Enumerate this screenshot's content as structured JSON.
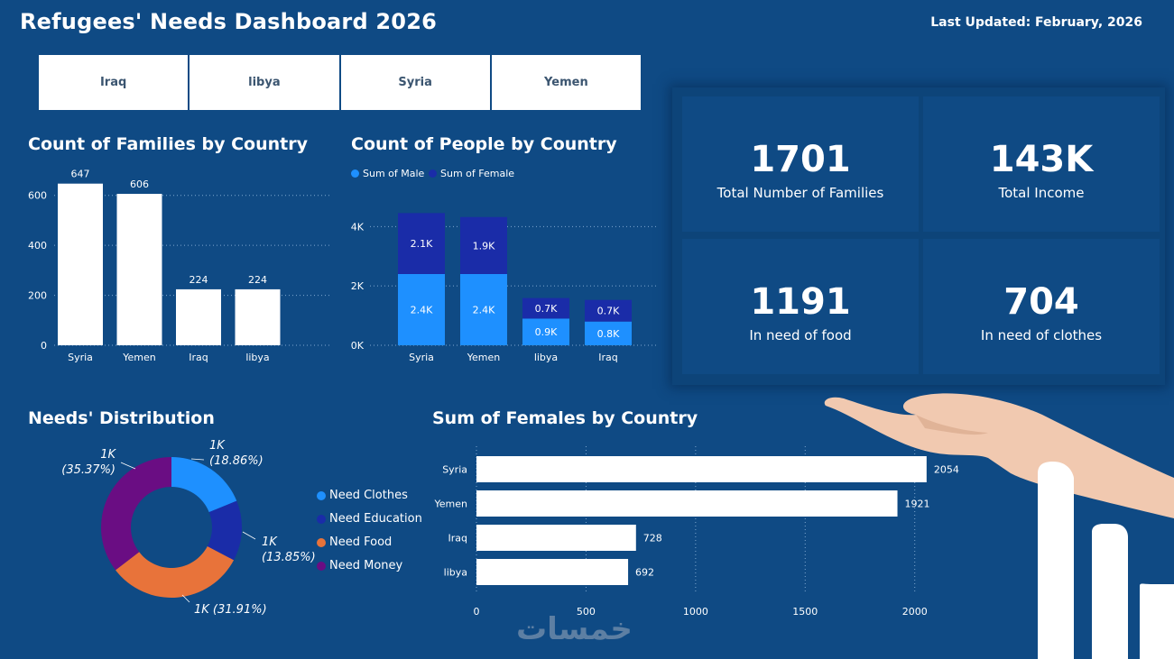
{
  "header": {
    "title": "Refugees' Needs Dashboard 2026",
    "last_updated": "Last Updated: February, 2026"
  },
  "slicer": {
    "items": [
      "Iraq",
      "libya",
      "Syria",
      "Yemen"
    ]
  },
  "colors": {
    "background": "#0f4a84",
    "male": "#1e90ff",
    "female": "#1a2ca8",
    "bar": "#ffffff",
    "clothes": "#1e90ff",
    "education": "#1a2ca8",
    "food": "#e8733a",
    "money": "#6a0d83"
  },
  "kpis": [
    {
      "value": "1701",
      "label": "Total Number of Families"
    },
    {
      "value": "143K",
      "label": "Total Income"
    },
    {
      "value": "1191",
      "label": "In need of food"
    },
    {
      "value": "704",
      "label": "In need of clothes"
    }
  ],
  "watermark": "خمسات",
  "chart_data": [
    {
      "id": "families",
      "type": "bar",
      "title": "Count of Families by Country",
      "categories": [
        "Syria",
        "Yemen",
        "Iraq",
        "libya"
      ],
      "values": [
        647,
        606,
        224,
        224
      ],
      "yticks": [
        0,
        200,
        400,
        600
      ],
      "ytick_labels": [
        "0",
        "200",
        "400",
        "600"
      ],
      "ylim": [
        0,
        700
      ]
    },
    {
      "id": "people",
      "type": "bar",
      "stacked": true,
      "title": "Count of People by Country",
      "categories": [
        "Syria",
        "Yemen",
        "libya",
        "Iraq"
      ],
      "series": [
        {
          "name": "Sum of Male",
          "values": [
            2400,
            2400,
            900,
            800
          ],
          "labels": [
            "2.4K",
            "2.4K",
            "0.9K",
            "0.8K"
          ]
        },
        {
          "name": "Sum of Female",
          "values": [
            2054,
            1921,
            692,
            728
          ],
          "labels": [
            "2.1K",
            "1.9K",
            "0.7K",
            "0.7K"
          ]
        }
      ],
      "yticks": [
        0,
        2000,
        4000
      ],
      "ytick_labels": [
        "0K",
        "2K",
        "4K"
      ],
      "ylim": [
        0,
        4800
      ]
    },
    {
      "id": "needs",
      "type": "pie",
      "donut": true,
      "title": "Needs' Distribution",
      "series": [
        {
          "name": "Need Clothes",
          "percent": 18.86,
          "label": "1K",
          "pct_label": "(18.86%)"
        },
        {
          "name": "Need Education",
          "percent": 13.85,
          "label": "1K",
          "pct_label": "(13.85%)"
        },
        {
          "name": "Need Food",
          "percent": 31.91,
          "label": "1K (31.91%)",
          "pct_label": ""
        },
        {
          "name": "Need Money",
          "percent": 35.37,
          "label": "1K",
          "pct_label": "(35.37%)"
        }
      ]
    },
    {
      "id": "females",
      "type": "bar",
      "orientation": "horizontal",
      "title": "Sum of Females by Country",
      "categories": [
        "Syria",
        "Yemen",
        "Iraq",
        "libya"
      ],
      "values": [
        2054,
        1921,
        728,
        692
      ],
      "xticks": [
        0,
        500,
        1000,
        1500,
        2000
      ],
      "xtick_labels": [
        "0",
        "500",
        "1000",
        "1500",
        "2000"
      ],
      "xlim": [
        0,
        2100
      ]
    }
  ]
}
